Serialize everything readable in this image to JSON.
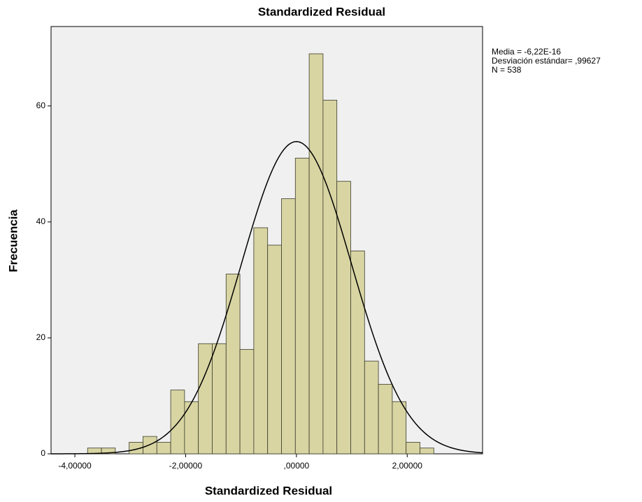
{
  "chart_data": {
    "type": "histogram",
    "title": "Standardized Residual",
    "x_label": "Standardized Residual",
    "y_label": "Frecuencia",
    "bins": [
      -3.77,
      -3.52,
      -3.27,
      -3.02,
      -2.77,
      -2.52,
      -2.27,
      -2.02,
      -1.77,
      -1.52,
      -1.27,
      -1.02,
      -0.77,
      -0.52,
      -0.27,
      -0.02,
      0.23,
      0.48,
      0.73,
      0.98,
      1.23,
      1.48,
      1.73,
      1.98,
      2.23,
      2.48
    ],
    "values": [
      1,
      1,
      0,
      2,
      3,
      2,
      11,
      9,
      19,
      19,
      31,
      18,
      39,
      36,
      44,
      51,
      69,
      61,
      47,
      35,
      16,
      12,
      9,
      2,
      1
    ],
    "color": "#d8d5a3",
    "xlim": [
      -4.43,
      3.36
    ],
    "ylim": [
      0,
      73.7
    ],
    "xticks": [
      {
        "value": -4,
        "label": "-4,00000"
      },
      {
        "value": -2,
        "label": "-2,00000"
      },
      {
        "value": 0,
        "label": ",00000"
      },
      {
        "value": 2,
        "label": "2,00000"
      }
    ],
    "yticks": [
      0,
      20,
      40,
      60
    ],
    "grid": false,
    "stats": {
      "mean": {
        "value": -6.22e-16,
        "label": "Media = -6,22E-16"
      },
      "sd": {
        "value": 0.99627,
        "label": "Desviación estándar= ,99627"
      },
      "n": {
        "value": 538,
        "label": "N = 538"
      }
    }
  }
}
